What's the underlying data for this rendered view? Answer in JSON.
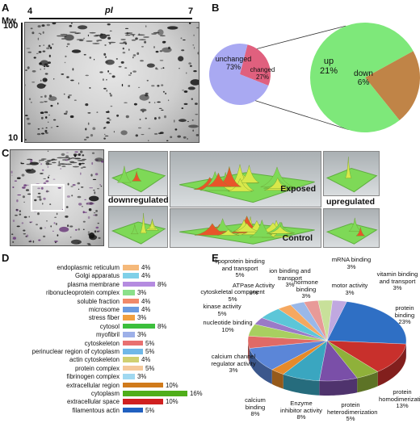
{
  "panels": {
    "a": "A",
    "b": "B",
    "c": "C",
    "d": "D",
    "e": "E"
  },
  "gel_axis": {
    "mw_label": "Mw",
    "pi_label": "pI",
    "pi_low": "4",
    "pi_high": "7",
    "mw_high": "100",
    "mw_low": "10"
  },
  "chart_data": [
    {
      "id": "B-left",
      "type": "pie",
      "slices": [
        {
          "label": "unchanged",
          "value": 73,
          "text": "73%",
          "color": "#a9a9f2"
        },
        {
          "label": "changed",
          "value": 27,
          "text": "27%",
          "color": "#e0607e"
        }
      ]
    },
    {
      "id": "B-right",
      "type": "pie",
      "slices": [
        {
          "label": "up",
          "value": 21,
          "text": "21%",
          "color": "#7ee87a"
        },
        {
          "label": "down",
          "value": 6,
          "text": "6%",
          "color": "#c08447"
        }
      ]
    },
    {
      "id": "D",
      "type": "bar",
      "orientation": "horizontal",
      "categories": [
        "endoplasmic reticulum",
        "Golgi apparatus",
        "plasma membrane",
        "ribonucleoprotein complex",
        "soluble fraction",
        "microsome",
        "stress fiber",
        "cytosol",
        "myofibril",
        "cytoskeleton",
        "perinuclear region of cytoplasm",
        "actin cytoskeleton",
        "protein complex",
        "fibrinogen complex",
        "extracellular region",
        "cytoplasm",
        "extracellular space",
        "filamentous actin"
      ],
      "values": [
        4,
        4,
        8,
        3,
        4,
        4,
        3,
        8,
        3,
        5,
        5,
        4,
        5,
        3,
        10,
        16,
        10,
        5
      ],
      "value_labels": [
        "4%",
        "4%",
        "8%",
        "3%",
        "4%",
        "4%",
        "3%",
        "8%",
        "3%",
        "5%",
        "5%",
        "4%",
        "5%",
        "3%",
        "10%",
        "16%",
        "10%",
        "5%"
      ],
      "colors": [
        "#f5b97a",
        "#7fd0e8",
        "#b58be0",
        "#8be08b",
        "#f08a6a",
        "#6b9be0",
        "#f0a040",
        "#3cbf3c",
        "#9db0e8",
        "#e87070",
        "#70b8e8",
        "#d0d070",
        "#f5c89a",
        "#a0d8f0",
        "#d07a1a",
        "#4fae1a",
        "#d02020",
        "#2060c0"
      ],
      "xlim": [
        0,
        16
      ]
    },
    {
      "id": "E",
      "type": "pie",
      "slices": [
        {
          "label": "protein binding",
          "value": 23,
          "text": "23%",
          "color": "#2f6fc4"
        },
        {
          "label": "protein homodimerization",
          "value": 13,
          "text": "13%",
          "color": "#c8302c"
        },
        {
          "label": "protein heterodimerization",
          "value": 5,
          "text": "5%",
          "color": "#8fb13a"
        },
        {
          "label": "Enzyme inhibitor activity",
          "value": 8,
          "text": "8%",
          "color": "#7a4fa8"
        },
        {
          "label": "calcium binding",
          "value": 8,
          "text": "8%",
          "color": "#3aa6c0"
        },
        {
          "label": "calcium channel regulator activity",
          "value": 3,
          "text": "3%",
          "color": "#e58a2a"
        },
        {
          "label": "nucleotide binding",
          "value": 10,
          "text": "10%",
          "color": "#5b86d8"
        },
        {
          "label": "kinase activity",
          "value": 5,
          "text": "5%",
          "color": "#e06a66"
        },
        {
          "label": "cytoskeletal component",
          "value": 5,
          "text": "5%",
          "color": "#a8cf60"
        },
        {
          "label": "ATPase Activity",
          "value": 3,
          "text": "3%",
          "color": "#9a7ac8"
        },
        {
          "label": "lipoprotein binding and transport",
          "value": 5,
          "text": "5%",
          "color": "#5cc6d8"
        },
        {
          "label": "ion binding and transport",
          "value": 3,
          "text": "3%",
          "color": "#f5a860"
        },
        {
          "label": "hormone binding",
          "value": 3,
          "text": "3%",
          "color": "#9ab8e8"
        },
        {
          "label": "mRNA binding",
          "value": 3,
          "text": "3%",
          "color": "#e89a98"
        },
        {
          "label": "motor activity",
          "value": 3,
          "text": "3%",
          "color": "#c8e09a"
        },
        {
          "label": "vitamin binding and transport",
          "value": 3,
          "text": "3%",
          "color": "#c0a8e0"
        }
      ]
    }
  ],
  "panel_c": {
    "downregulated": "downregulated",
    "upregulated": "upregulated",
    "exposed": "Exposed",
    "control": "Control"
  },
  "colors": {
    "terrain_low": "#7ed957",
    "terrain_mid": "#d8e84a",
    "terrain_peak": "#e8552a"
  }
}
